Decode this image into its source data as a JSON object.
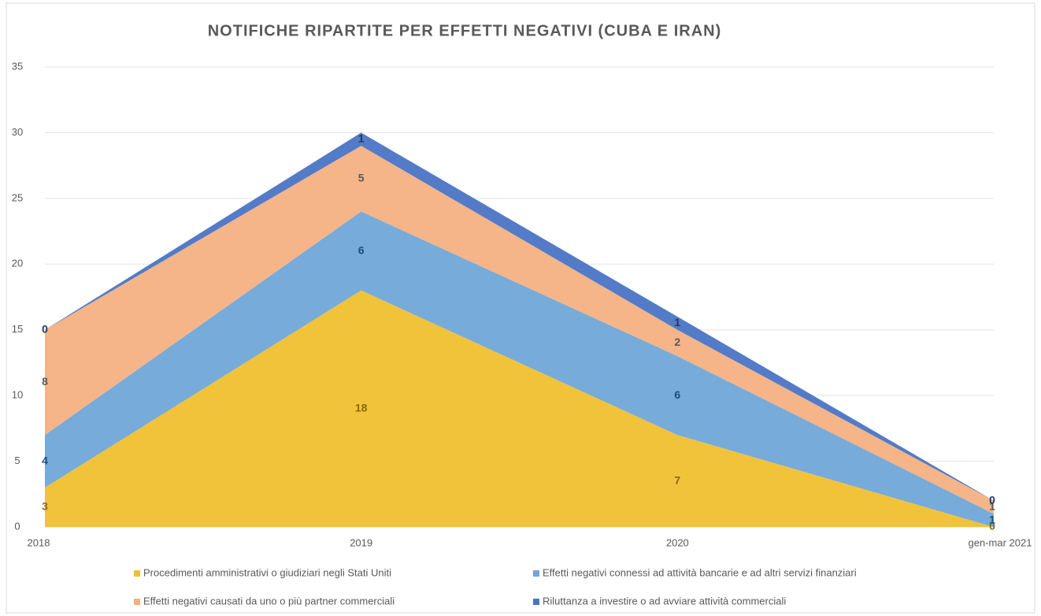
{
  "chart_data": {
    "type": "area",
    "stacked": true,
    "title": "NOTIFICHE RIPARTITE PER EFFETTI NEGATIVI (CUBA E IRAN)",
    "categories": [
      "2018",
      "2019",
      "2020",
      "gen-mar 2021"
    ],
    "series": [
      {
        "name": "Procedimenti amministrativi o giudiziari negli Stati Uniti",
        "color": "#f0c030",
        "label_color": "#8a6a10",
        "values": [
          3,
          18,
          7,
          0
        ]
      },
      {
        "name": "Effetti negativi connessi ad attività bancarie e ad altri servizi finanziari",
        "color": "#6fa6d8",
        "label_color": "#1f4e79",
        "values": [
          4,
          6,
          6,
          1
        ]
      },
      {
        "name": "Effetti negativi causati da uno o più partner commerciali",
        "color": "#f4b183",
        "label_color": "#595959",
        "values": [
          8,
          5,
          2,
          1
        ]
      },
      {
        "name": "Riluttanza a investire o ad avviare attività commerciali",
        "color": "#4a74c4",
        "label_color": "#1f3864",
        "values": [
          0,
          1,
          1,
          0
        ]
      }
    ],
    "ylim": [
      0,
      35
    ],
    "yticks": [
      0,
      5,
      10,
      15,
      20,
      25,
      30,
      35
    ],
    "grid": true
  }
}
